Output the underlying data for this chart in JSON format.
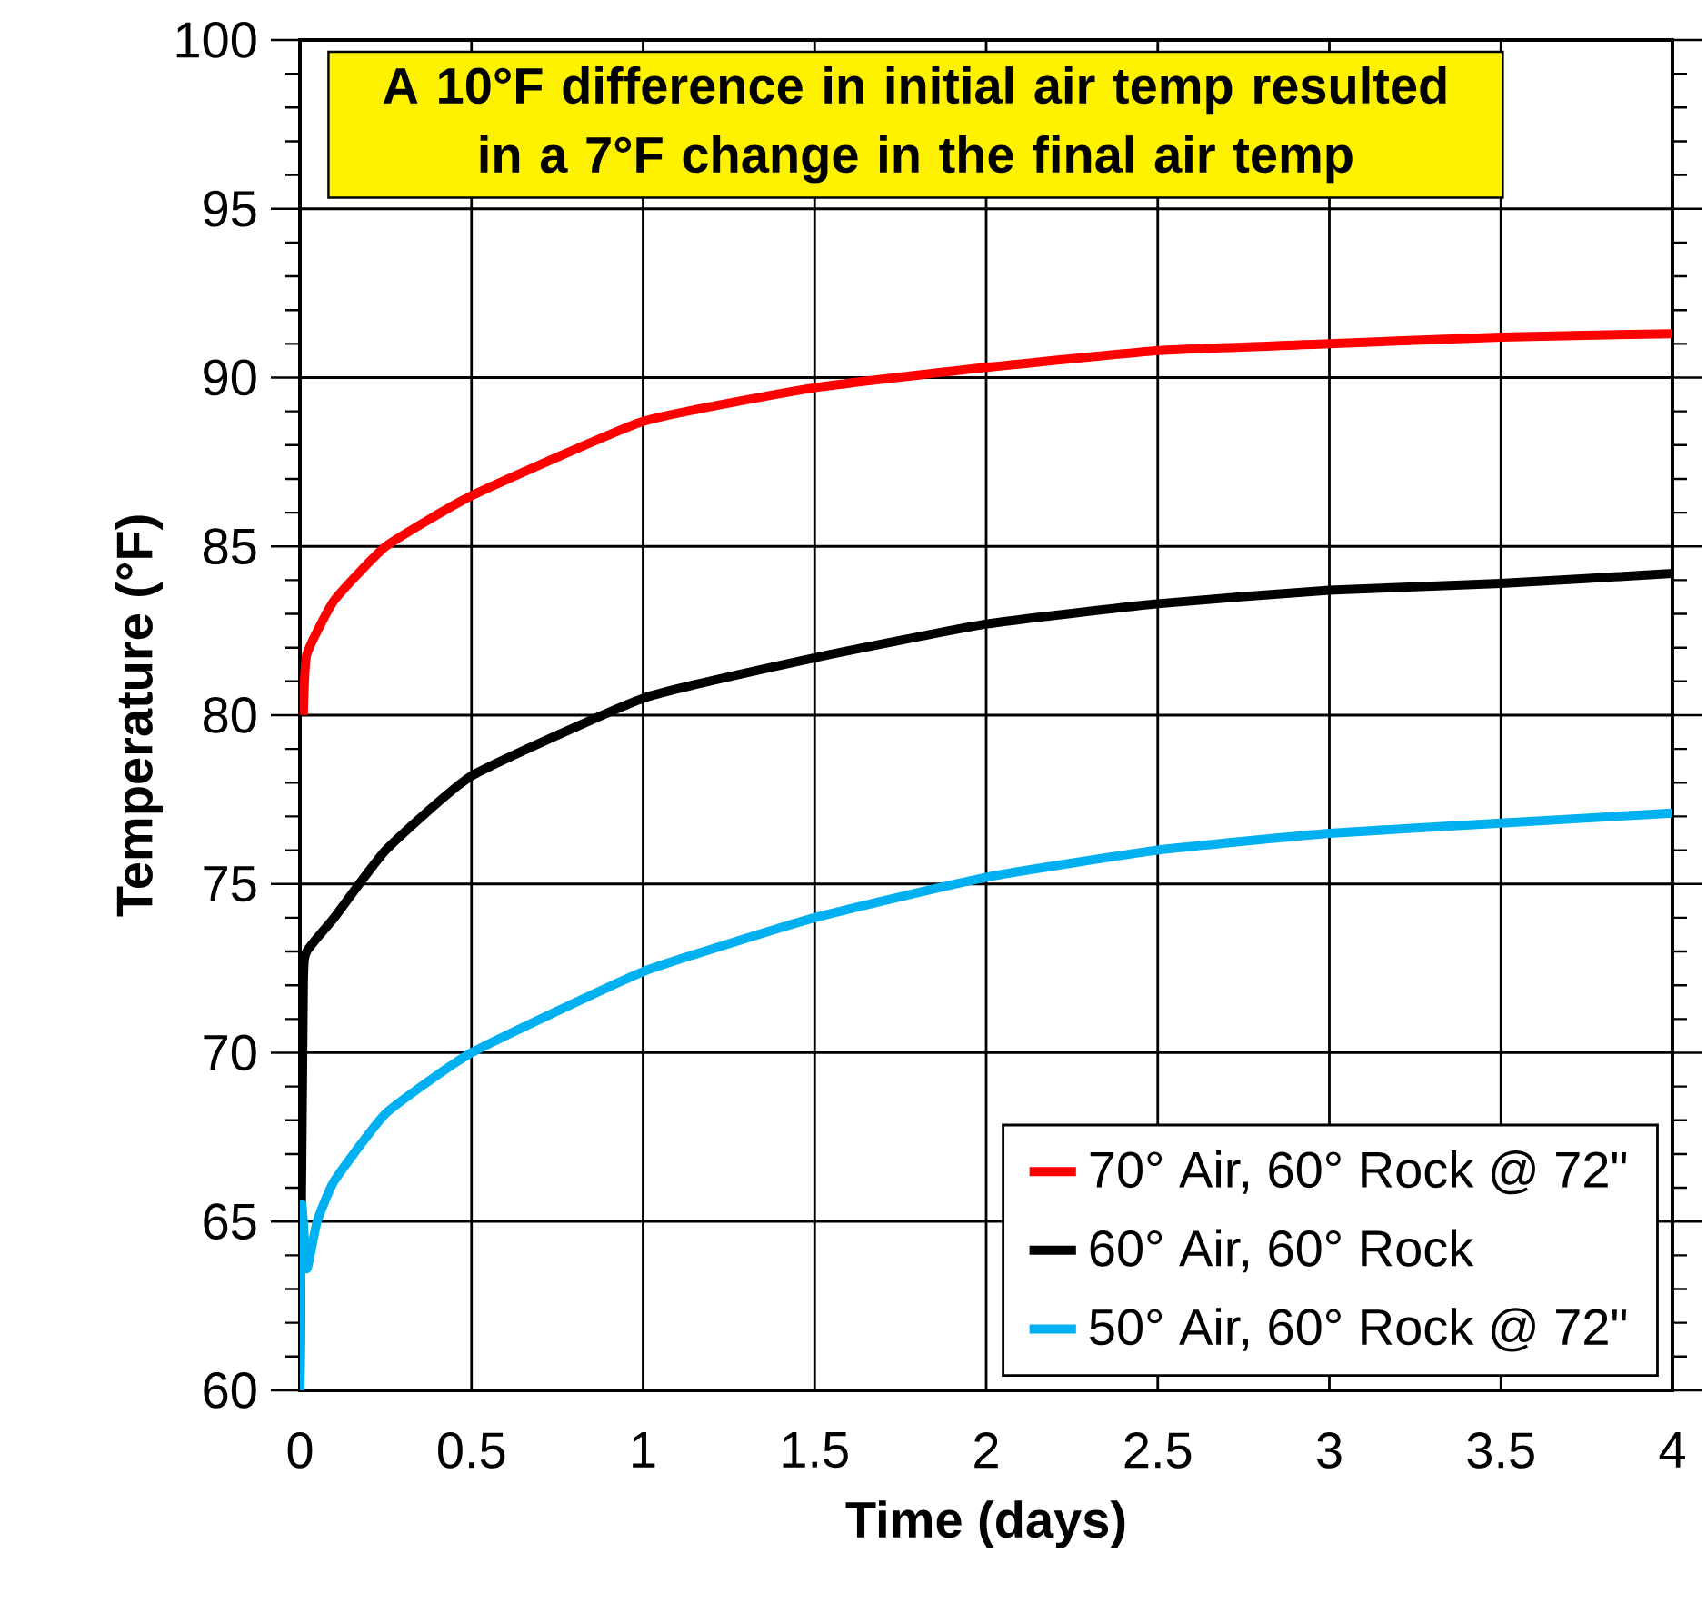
{
  "chart_data": {
    "type": "line",
    "xlabel": "Time (days)",
    "ylabel": "Temperature (°F)",
    "annotations": [
      "A 10°F difference in initial air temp resulted in a 7°F change in the final air temp"
    ],
    "xlim": [
      0,
      4
    ],
    "ylim": [
      60,
      100
    ],
    "xticks": [
      0,
      0.5,
      1,
      1.5,
      2,
      2.5,
      3,
      3.5,
      4
    ],
    "yticks": [
      60,
      65,
      70,
      75,
      80,
      85,
      90,
      95,
      100
    ],
    "grid": true,
    "legend": "bottom right",
    "marker": "none",
    "line_style": "solid",
    "series": [
      {
        "name": "70° Air, 60° Rock @ 72\"",
        "color": "#ff0000",
        "x": [
          0.01,
          0.02,
          0.1,
          0.25,
          0.5,
          1,
          1.5,
          2,
          2.5,
          3,
          3.5,
          4
        ],
        "values": [
          80,
          81.8,
          83.4,
          85.0,
          86.5,
          88.7,
          89.7,
          90.3,
          90.8,
          91.0,
          91.2,
          91.3
        ]
      },
      {
        "name": "60° Air, 60° Rock",
        "color": "#000000",
        "x": [
          0,
          0.01,
          0.02,
          0.1,
          0.25,
          0.5,
          1,
          1.5,
          2,
          2.5,
          3,
          3.5,
          4
        ],
        "values": [
          60,
          72,
          73,
          74.0,
          76.0,
          78.2,
          80.5,
          81.7,
          82.7,
          83.3,
          83.7,
          83.9,
          84.2
        ]
      },
      {
        "name": "50° Air, 60° Rock @ 72\"",
        "color": "#00b0f0",
        "x": [
          0,
          0.005,
          0.02,
          0.05,
          0.1,
          0.25,
          0.5,
          1,
          1.5,
          2,
          2.5,
          3,
          3.5,
          4
        ],
        "values": [
          60,
          65.5,
          63.6,
          65.0,
          66.2,
          68.2,
          70.0,
          72.4,
          74.0,
          75.2,
          76.0,
          76.5,
          76.8,
          77.1
        ]
      }
    ]
  }
}
